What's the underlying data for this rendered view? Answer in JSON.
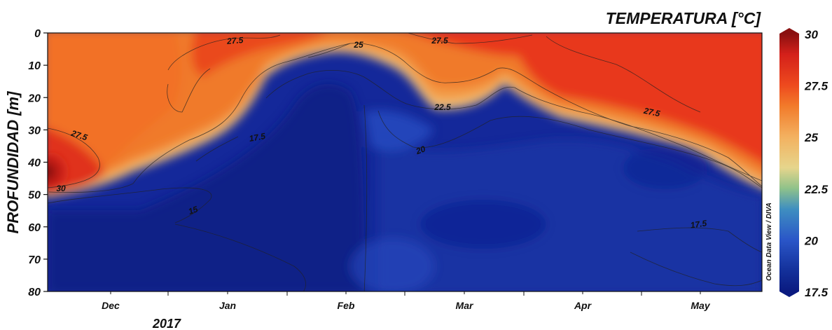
{
  "chart_data": {
    "type": "heatmap",
    "title": "TEMPERATURA [°C]",
    "ylabel": "PROFUNDIDAD [m]",
    "xlabel": "",
    "year_label": "2017",
    "credit": "Ocean Data View / DIVA",
    "y_axis": {
      "range": [
        0,
        80
      ],
      "inverted": true,
      "ticks": [
        "0",
        "10",
        "20",
        "30",
        "40",
        "50",
        "60",
        "70",
        "80"
      ]
    },
    "x_axis": {
      "ticks": [
        "Dec",
        "Jan",
        "Feb",
        "Mar",
        "Apr",
        "May"
      ]
    },
    "colorbar": {
      "range": [
        17.5,
        30
      ],
      "ticks": [
        "30",
        "27.5",
        "25",
        "22.5",
        "20",
        "17.5"
      ],
      "stops": [
        {
          "value": 17.5,
          "color": "#0a1a80"
        },
        {
          "value": 18.5,
          "color": "#13309a"
        },
        {
          "value": 20,
          "color": "#2a56c8"
        },
        {
          "value": 21.5,
          "color": "#3f8fc0"
        },
        {
          "value": 22.5,
          "color": "#8fc28a"
        },
        {
          "value": 23.5,
          "color": "#e6d58c"
        },
        {
          "value": 25,
          "color": "#f3b160"
        },
        {
          "value": 26.5,
          "color": "#f27a2a"
        },
        {
          "value": 27.5,
          "color": "#ee4a1e"
        },
        {
          "value": 29,
          "color": "#d4201a"
        },
        {
          "value": 30,
          "color": "#8a1010"
        }
      ]
    },
    "contour_labels": [
      {
        "text": "27.5"
      },
      {
        "text": "27.5"
      },
      {
        "text": "25"
      },
      {
        "text": "27.5"
      },
      {
        "text": "22.5"
      },
      {
        "text": "27.5"
      },
      {
        "text": "20"
      },
      {
        "text": "17.5"
      },
      {
        "text": "30"
      },
      {
        "text": "15"
      },
      {
        "text": "17.5"
      }
    ]
  }
}
